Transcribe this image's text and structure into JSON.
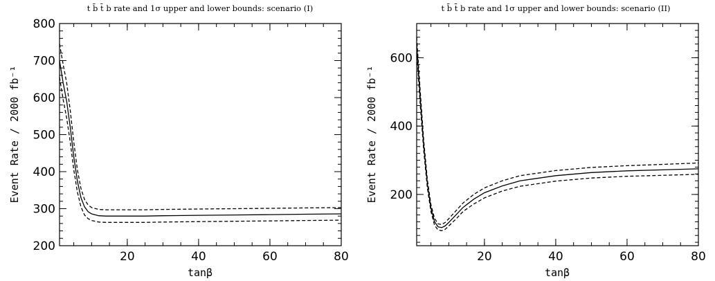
{
  "chart_data": [
    {
      "type": "line",
      "title": "t b̄ t̄ b rate and 1σ upper and lower bounds: scenario (I)",
      "xlabel": "tanβ",
      "ylabel": "Event Rate / 2000 fb⁻¹",
      "xlim": [
        1,
        80
      ],
      "ylim": [
        200,
        800
      ],
      "xticks": [
        20,
        40,
        60,
        80
      ],
      "yticks": [
        200,
        300,
        400,
        500,
        600,
        700,
        800
      ],
      "xminor": 5,
      "yminor": 20,
      "x": [
        1,
        2,
        3,
        4,
        5,
        6,
        7,
        8,
        9,
        10,
        12,
        14,
        17,
        20,
        25,
        30,
        40,
        50,
        60,
        70,
        80
      ],
      "series": [
        {
          "style": "solid",
          "values": [
            700,
            640,
            590,
            520,
            440,
            375,
            330,
            305,
            292,
            286,
            281,
            280,
            280,
            280,
            280,
            281,
            282,
            283,
            284,
            285,
            286
          ]
        },
        {
          "style": "dashed",
          "values": [
            745,
            690,
            640,
            565,
            480,
            405,
            355,
            325,
            310,
            303,
            298,
            297,
            297,
            297,
            297,
            298,
            299,
            300,
            301,
            302,
            303
          ]
        },
        {
          "style": "dashed",
          "values": [
            655,
            595,
            545,
            480,
            405,
            345,
            305,
            283,
            273,
            268,
            264,
            263,
            263,
            263,
            263,
            264,
            265,
            266,
            267,
            268,
            269
          ]
        }
      ]
    },
    {
      "type": "line",
      "title": "t b̄ t̄ b rate and 1σ upper and lower bounds: scenario (II)",
      "xlabel": "tanβ",
      "ylabel": "Event Rate / 2000 fb⁻¹",
      "xlim": [
        1,
        80
      ],
      "ylim": [
        50,
        700
      ],
      "xticks": [
        20,
        40,
        60,
        80
      ],
      "yticks": [
        200,
        400,
        600
      ],
      "xminor": 5,
      "yminor": 20,
      "x": [
        1,
        2,
        3,
        4,
        5,
        6,
        7,
        8,
        9,
        10,
        12,
        14,
        17,
        20,
        25,
        30,
        40,
        50,
        60,
        70,
        80
      ],
      "series": [
        {
          "style": "solid",
          "values": [
            640,
            480,
            340,
            230,
            160,
            120,
            105,
            103,
            108,
            118,
            140,
            162,
            186,
            205,
            225,
            240,
            255,
            264,
            269,
            272,
            275
          ]
        },
        {
          "style": "dashed",
          "values": [
            660,
            500,
            355,
            242,
            170,
            130,
            114,
            112,
            118,
            129,
            152,
            175,
            200,
            219,
            240,
            255,
            270,
            279,
            284,
            288,
            292
          ]
        },
        {
          "style": "dashed",
          "values": [
            620,
            460,
            325,
            218,
            150,
            110,
            96,
            94,
            98,
            108,
            128,
            150,
            172,
            190,
            210,
            224,
            239,
            248,
            253,
            256,
            259
          ]
        }
      ]
    }
  ]
}
